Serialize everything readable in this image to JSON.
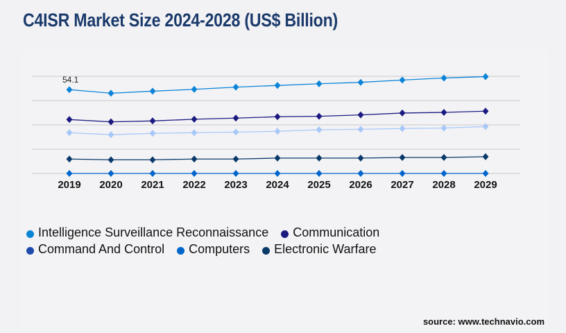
{
  "title": "C4ISR Market Size 2024-2028 (US$ Billion)",
  "source": "source: www.technavio.com",
  "chart_data": {
    "type": "line",
    "title": "C4ISR Market Size 2024-2028 (US$ Billion)",
    "xlabel": "",
    "ylabel": "",
    "x": [
      "2019",
      "2020",
      "2021",
      "2022",
      "2023",
      "2024",
      "2025",
      "2026",
      "2027",
      "2028",
      "2029"
    ],
    "ylim": [
      0,
      62.7
    ],
    "grid": true,
    "legend_placement": "bottom",
    "annotations": [
      {
        "series": "Intelligence Surveillance Reconnaissance",
        "x": "2019",
        "label": "54.1"
      }
    ],
    "series": [
      {
        "name": "Intelligence Surveillance Reconnaissance",
        "color": "#0b84d8",
        "line_color": "#0b84d8",
        "values": [
          54.1,
          51.8,
          53.1,
          54.3,
          55.7,
          56.8,
          57.9,
          58.8,
          60.3,
          61.6,
          62.5
        ]
      },
      {
        "name": "Communication",
        "color": "#1c1a80",
        "line_color": "#1c1a80",
        "values": [
          34.8,
          33.3,
          33.9,
          35.0,
          35.7,
          36.6,
          36.9,
          37.8,
          39.0,
          39.4,
          40.2
        ]
      },
      {
        "name": "Command And Control",
        "color": "#1e4aae",
        "line_color": "#a8c8f8",
        "values": [
          26.3,
          25.0,
          25.9,
          26.3,
          26.7,
          27.2,
          28.2,
          28.5,
          29.0,
          29.3,
          30.3
        ]
      },
      {
        "name": "Computers",
        "color": "#0066cc",
        "line_color": "#0066cc",
        "values": [
          0,
          0,
          0,
          0,
          0,
          0,
          0,
          0,
          0,
          0,
          0
        ]
      },
      {
        "name": "Electronic Warfare",
        "color": "#0a3a6a",
        "line_color": "#0a3a6a",
        "values": [
          9.3,
          8.8,
          8.8,
          9.3,
          9.3,
          9.9,
          9.9,
          9.9,
          10.3,
          10.3,
          10.8
        ]
      }
    ]
  },
  "legend_rows": [
    [
      0,
      1
    ],
    [
      2,
      3,
      4
    ]
  ]
}
